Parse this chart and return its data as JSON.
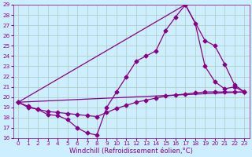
{
  "xlabel": "Windchill (Refroidissement éolien,°C)",
  "bg_color": "#cceeff",
  "line_color": "#880088",
  "grid_color": "#aaccbb",
  "xlim": [
    -0.5,
    23.5
  ],
  "ylim": [
    16,
    29
  ],
  "xticks": [
    0,
    1,
    2,
    3,
    4,
    5,
    6,
    7,
    8,
    9,
    10,
    11,
    12,
    13,
    14,
    15,
    16,
    17,
    18,
    19,
    20,
    21,
    22,
    23
  ],
  "yticks": [
    16,
    17,
    18,
    19,
    20,
    21,
    22,
    23,
    24,
    25,
    26,
    27,
    28,
    29
  ],
  "series1_x": [
    0,
    1,
    2,
    3,
    4,
    5,
    6,
    7,
    8,
    9,
    10,
    11,
    12,
    13,
    14,
    15,
    16,
    17,
    18,
    19,
    20,
    21,
    22,
    23
  ],
  "series1_y": [
    19.5,
    19.1,
    18.8,
    18.6,
    18.5,
    18.4,
    18.3,
    18.2,
    18.1,
    18.5,
    18.9,
    19.2,
    19.5,
    19.7,
    19.9,
    20.1,
    20.2,
    20.3,
    20.4,
    20.5,
    20.5,
    20.5,
    20.5,
    20.5
  ],
  "series2_x": [
    0,
    1,
    2,
    3,
    4,
    5,
    6,
    7,
    8,
    9,
    10,
    11,
    12,
    13,
    14,
    15,
    16,
    17,
    18,
    19,
    20,
    21,
    22,
    23
  ],
  "series2_y": [
    19.5,
    19.0,
    18.8,
    18.3,
    18.2,
    17.8,
    17.0,
    16.5,
    16.3,
    19.0,
    20.5,
    22.0,
    23.5,
    24.0,
    24.5,
    26.5,
    27.8,
    29.0,
    27.2,
    23.0,
    21.5,
    20.8,
    21.0,
    20.5
  ],
  "series3_x": [
    0,
    17,
    19,
    20,
    21,
    22,
    23
  ],
  "series3_y": [
    19.5,
    29.0,
    25.5,
    25.0,
    23.2,
    21.2,
    20.5
  ],
  "marker": "D",
  "markersize": 2.5,
  "linewidth": 0.9,
  "tick_fontsize": 5.2,
  "xlabel_fontsize": 6.0
}
